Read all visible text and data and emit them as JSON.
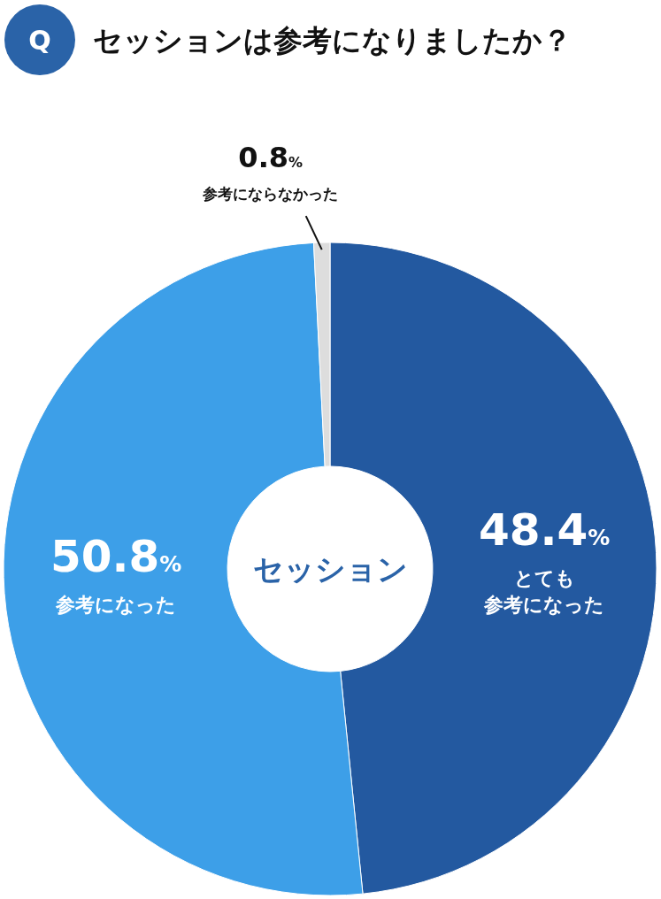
{
  "chart_data": {
    "type": "donut",
    "title": "セッションは参考になりましたか？",
    "annotations": [
      "Q",
      "セッション"
    ],
    "categories": [
      "とても参考になった",
      "参考になった",
      "参考にならなかった"
    ],
    "values": [
      48.4,
      50.8,
      0.8
    ],
    "value_labels": [
      "48.4%",
      "50.8%",
      "0.8%"
    ],
    "colors": [
      "#2359a0",
      "#3d9fe8",
      "#dddddd"
    ],
    "legend": false
  }
}
